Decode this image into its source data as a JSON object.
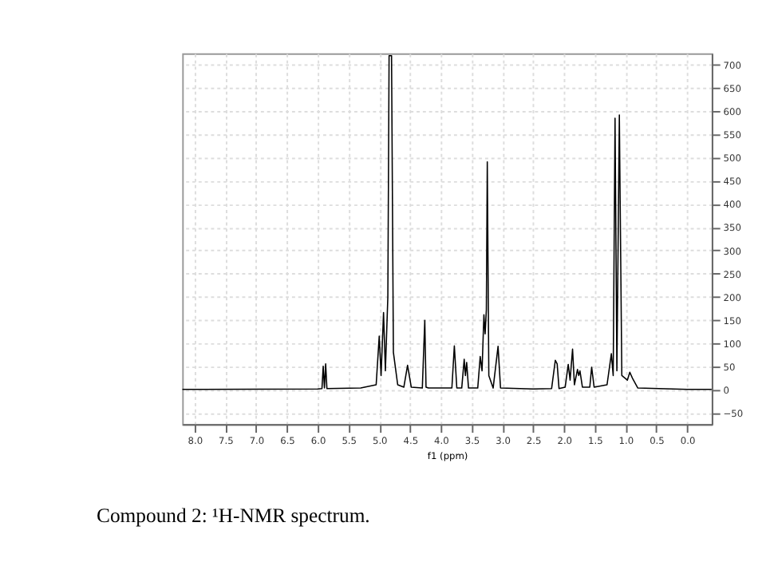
{
  "chart_data": {
    "type": "line",
    "xlabel": "f1 (ppm)",
    "annotations": [
      "Compound 2: ¹H-NMR spectrum."
    ],
    "xlim": [
      8.2,
      -0.4
    ],
    "ylim": [
      -75,
      725
    ],
    "xticks": [
      {
        "value": 8,
        "label": "8.0"
      },
      7.5,
      {
        "value": 7,
        "label": "7.0"
      },
      6.5,
      {
        "value": 6,
        "label": "6.0"
      },
      5.5,
      {
        "value": 5,
        "label": "5.0"
      },
      4.5,
      {
        "value": 4,
        "label": "4.0"
      },
      3.5,
      {
        "value": 3,
        "label": "3.0"
      },
      2.5,
      {
        "value": 2,
        "label": "2.0"
      },
      1.5,
      {
        "value": 1,
        "label": "1.0"
      },
      0.5,
      {
        "value": 0,
        "label": "0.0"
      }
    ],
    "yticks": [
      -50,
      0,
      50,
      100,
      150,
      200,
      250,
      300,
      350,
      400,
      450,
      500,
      550,
      600,
      650,
      700
    ],
    "grid": true,
    "marker": "none",
    "line_style": "solid",
    "series": [
      {
        "color": "#000000",
        "x": [
          8.2,
          6.0,
          5.93,
          5.91,
          5.89,
          5.87,
          5.85,
          5.3,
          5.05,
          5.0,
          4.97,
          4.93,
          4.9,
          4.86,
          4.84,
          4.8,
          4.77,
          4.7,
          4.6,
          4.54,
          4.48,
          4.3,
          4.26,
          4.24,
          4.2,
          3.82,
          3.78,
          3.74,
          3.66,
          3.62,
          3.6,
          3.58,
          3.55,
          3.4,
          3.36,
          3.33,
          3.3,
          3.28,
          3.26,
          3.245,
          3.22,
          3.15,
          3.07,
          3.03,
          2.5,
          2.2,
          2.14,
          2.11,
          2.08,
          1.98,
          1.93,
          1.9,
          1.86,
          1.83,
          1.78,
          1.76,
          1.74,
          1.7,
          1.58,
          1.55,
          1.51,
          1.3,
          1.23,
          1.2,
          1.17,
          1.14,
          1.1,
          1.06,
          0.97,
          0.93,
          0.89,
          0.8,
          0.0,
          -0.4
        ],
        "values": [
          0,
          1,
          2,
          50,
          3,
          55,
          2,
          3,
          10,
          115,
          30,
          166,
          40,
          200,
          720,
          720,
          80,
          10,
          5,
          52,
          5,
          3,
          149,
          5,
          3,
          3,
          94,
          3,
          3,
          65,
          30,
          58,
          3,
          3,
          71,
          40,
          161,
          120,
          172,
          491,
          30,
          3,
          93,
          3,
          1,
          2,
          63,
          55,
          2,
          5,
          54,
          20,
          87,
          10,
          43,
          30,
          40,
          5,
          5,
          48,
          5,
          10,
          77,
          30,
          585,
          40,
          592,
          30,
          20,
          37,
          25,
          3,
          0,
          0
        ]
      }
    ]
  }
}
